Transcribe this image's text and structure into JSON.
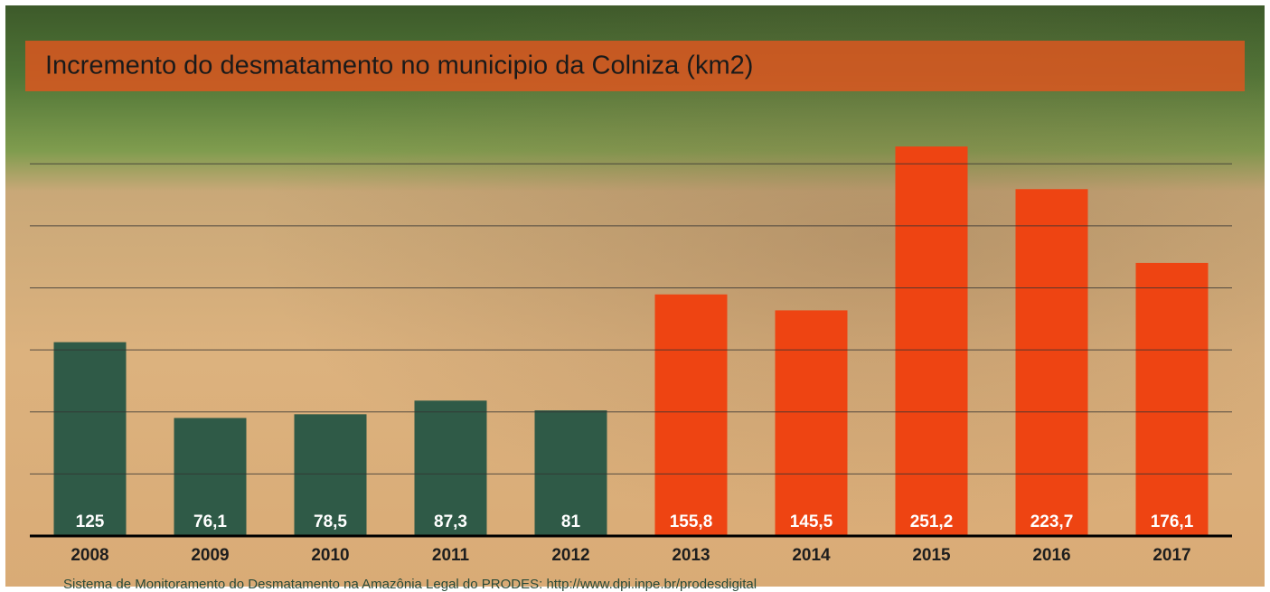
{
  "chart_data": {
    "type": "bar",
    "title": "Incremento do desmatamento no municipio da Colniza (km2)",
    "source": "Sistema de Monitoramento do Desmatamento na Amazônia Legal do  PRODES: http://www.dpi.inpe.br/prodesdigital",
    "categories": [
      "2008",
      "2009",
      "2010",
      "2011",
      "2012",
      "2013",
      "2014",
      "2015",
      "2016",
      "2017"
    ],
    "values": [
      125,
      76.1,
      78.5,
      87.3,
      81,
      155.8,
      145.5,
      251.2,
      223.7,
      176.1
    ],
    "value_labels": [
      "125",
      "76,1",
      "78,5",
      "87,3",
      "81",
      "155,8",
      "145,5",
      "251,2",
      "223,7",
      "176,1"
    ],
    "colors": [
      "#2f5a47",
      "#2f5a47",
      "#2f5a47",
      "#2f5a47",
      "#2f5a47",
      "#ee4412",
      "#ee4412",
      "#ee4412",
      "#ee4412",
      "#ee4412"
    ],
    "ylim": [
      0,
      260
    ],
    "yticks": [
      0,
      40,
      80,
      120,
      160,
      200,
      240
    ],
    "grid": true
  }
}
